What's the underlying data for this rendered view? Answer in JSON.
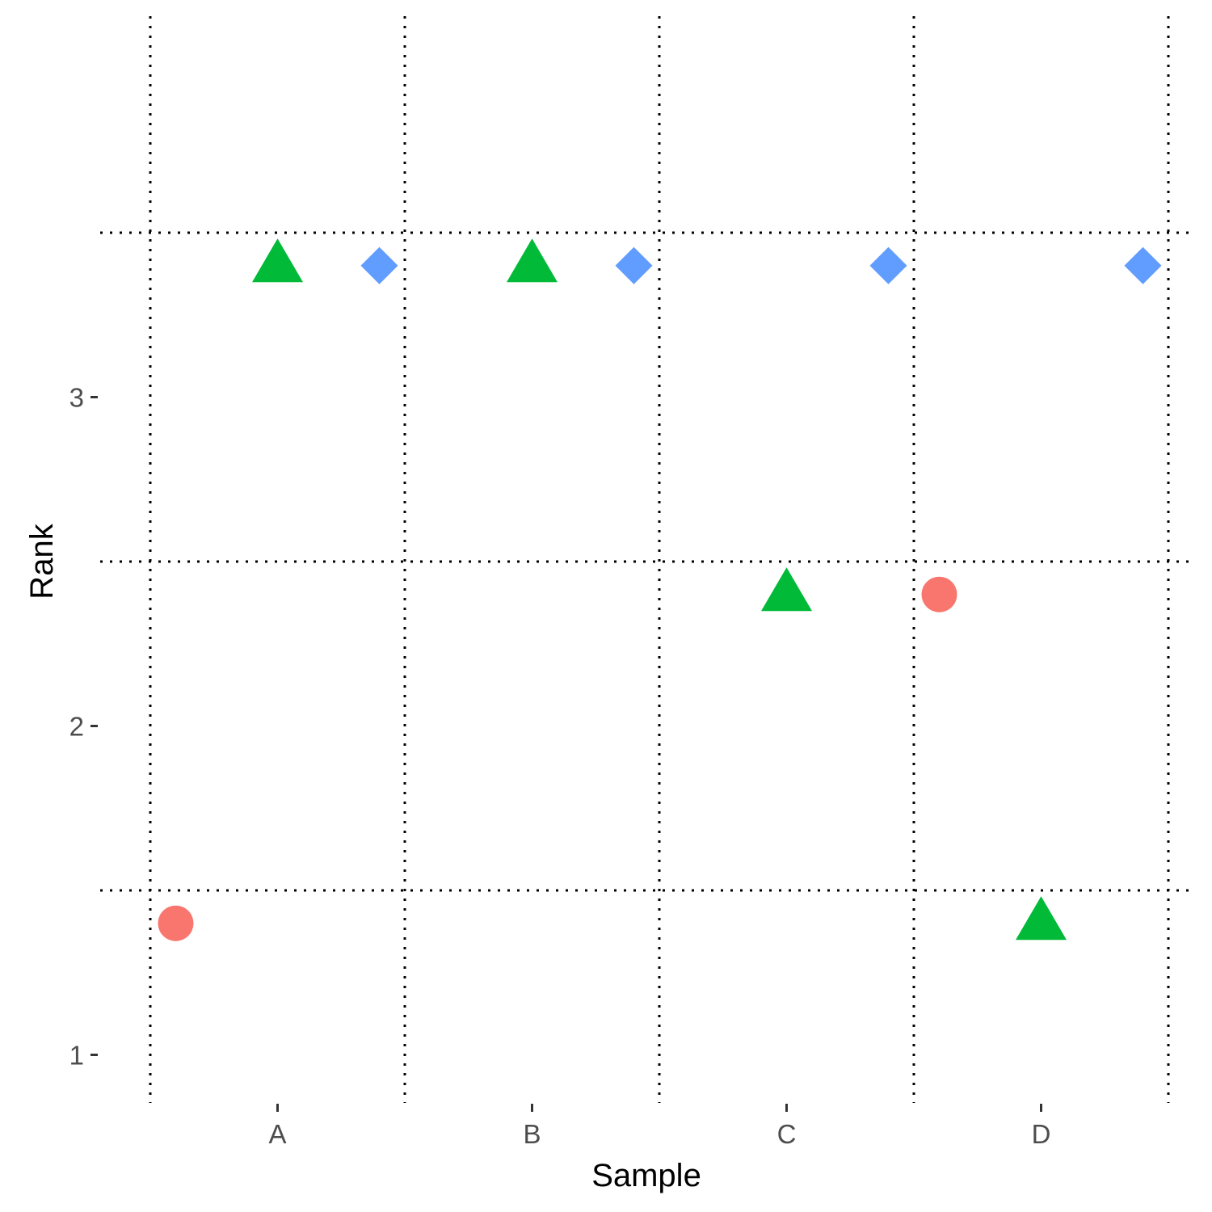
{
  "chart_data": {
    "type": "scatter",
    "title": "",
    "xlabel": "Sample",
    "ylabel": "Rank",
    "x_categories": [
      "A",
      "B",
      "C",
      "D"
    ],
    "y_ticks": [
      1,
      2,
      3
    ],
    "ylim": [
      0.5,
      3.5
    ],
    "grid": "dotted",
    "legend": "none",
    "series": [
      {
        "shape": "circle",
        "color": "#F8766D",
        "points": [
          {
            "x": 0.6,
            "y": 1.4
          },
          {
            "x": 3.6,
            "y": 2.4
          }
        ]
      },
      {
        "shape": "triangle",
        "color": "#00BA38",
        "points": [
          {
            "x": 1.0,
            "y": 3.4
          },
          {
            "x": 2.0,
            "y": 3.4
          },
          {
            "x": 3.0,
            "y": 2.4
          },
          {
            "x": 4.0,
            "y": 1.4
          }
        ]
      },
      {
        "shape": "diamond",
        "color": "#619CFF",
        "points": [
          {
            "x": 1.4,
            "y": 3.4
          },
          {
            "x": 2.4,
            "y": 3.4
          },
          {
            "x": 3.4,
            "y": 3.4
          },
          {
            "x": 4.4,
            "y": 3.4
          }
        ]
      }
    ]
  }
}
